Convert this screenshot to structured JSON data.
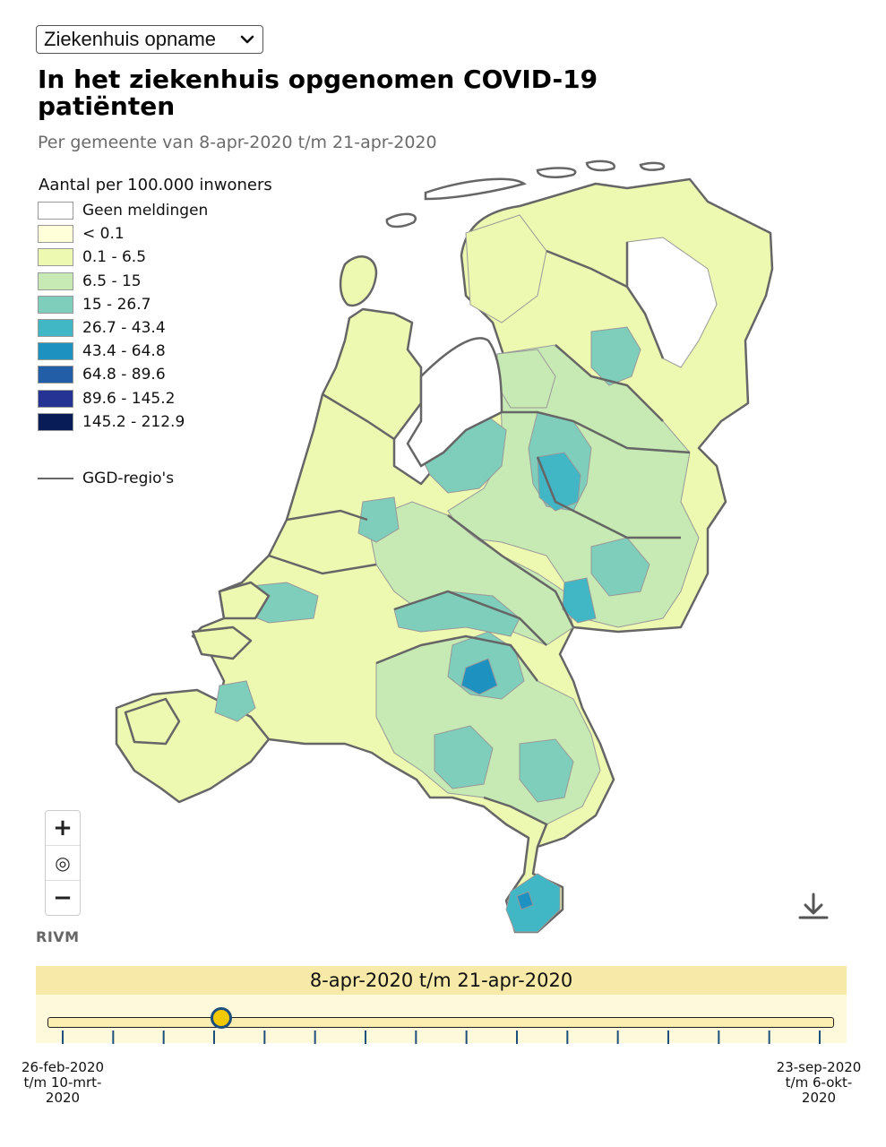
{
  "dropdown": {
    "selected": "Ziekenhuis opname"
  },
  "title": "In het ziekenhuis opgenomen COVID-19 patiënten",
  "subtitle": "Per gemeente van 8-apr-2020 t/m 21-apr-2020",
  "legend": {
    "title": "Aantal per 100.000 inwoners",
    "items": [
      {
        "label": "Geen meldingen",
        "color": "#ffffff"
      },
      {
        "label": "< 0.1",
        "color": "#ffffd9"
      },
      {
        "label": "0.1 - 6.5",
        "color": "#edf8b1"
      },
      {
        "label": "6.5 - 15",
        "color": "#c7e9b4"
      },
      {
        "label": "15 - 26.7",
        "color": "#7fcdbb"
      },
      {
        "label": "26.7 - 43.4",
        "color": "#41b6c4"
      },
      {
        "label": "43.4 - 64.8",
        "color": "#1d91c0"
      },
      {
        "label": "64.8 - 89.6",
        "color": "#225ea8"
      },
      {
        "label": "89.6 - 145.2",
        "color": "#253494"
      },
      {
        "label": "145.2 - 212.9",
        "color": "#081d58"
      }
    ],
    "boundary_label": "GGD-regio's",
    "boundary_color": "#666666"
  },
  "map": {
    "zoom_in_label": "+",
    "locate_label": "◎",
    "zoom_out_label": "−",
    "attribution": "RIVM",
    "icons": [
      "plus-icon",
      "target-icon",
      "minus-icon",
      "download-icon"
    ]
  },
  "timeline": {
    "current_period": "8-apr-2020 t/m 21-apr-2020",
    "start_label": "26-feb-2020 t/m 10-mrt-2020",
    "end_label": "23-sep-2020 t/m 6-okt-2020",
    "position_fraction": 0.21,
    "tick_count": 16
  }
}
